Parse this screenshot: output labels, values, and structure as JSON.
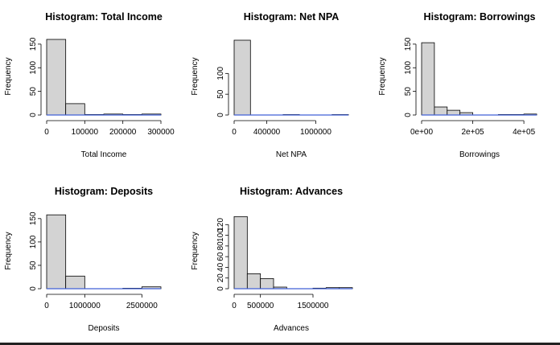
{
  "style": {
    "bar_fill": "#d3d3d3",
    "bar_stroke": "#000000",
    "baseline_color": "#4060d8"
  },
  "chart_data": [
    {
      "type": "bar",
      "title": "Histogram: Total Income",
      "xlabel": "Total Income",
      "ylabel": "Frequency",
      "xlim": [
        0,
        300000
      ],
      "ylim": [
        0,
        160
      ],
      "xticks": [
        0,
        100000,
        200000,
        300000
      ],
      "xtick_labels": [
        "0",
        "100000",
        "200000",
        "300000"
      ],
      "yticks": [
        0,
        50,
        100,
        150
      ],
      "ytick_labels": [
        "0",
        "50",
        "100",
        "150"
      ],
      "bins": [
        {
          "from": 0,
          "to": 50000,
          "count": 160
        },
        {
          "from": 50000,
          "to": 100000,
          "count": 24
        },
        {
          "from": 100000,
          "to": 150000,
          "count": 1
        },
        {
          "from": 150000,
          "to": 200000,
          "count": 2
        },
        {
          "from": 200000,
          "to": 250000,
          "count": 1
        },
        {
          "from": 250000,
          "to": 300000,
          "count": 2
        }
      ]
    },
    {
      "type": "bar",
      "title": "Histogram: Net NPA",
      "xlabel": "Net NPA",
      "ylabel": "Frequency",
      "xlim": [
        0,
        1400000
      ],
      "ylim": [
        0,
        180
      ],
      "xticks": [
        0,
        400000,
        1000000
      ],
      "xtick_labels": [
        "0",
        "400000",
        "1000000"
      ],
      "yticks": [
        0,
        50,
        100
      ],
      "ytick_labels": [
        "0",
        "50",
        "100"
      ],
      "bins": [
        {
          "from": 0,
          "to": 200000,
          "count": 180
        },
        {
          "from": 200000,
          "to": 400000,
          "count": 0
        },
        {
          "from": 400000,
          "to": 600000,
          "count": 0
        },
        {
          "from": 600000,
          "to": 800000,
          "count": 1
        },
        {
          "from": 800000,
          "to": 1000000,
          "count": 0
        },
        {
          "from": 1000000,
          "to": 1200000,
          "count": 0
        },
        {
          "from": 1200000,
          "to": 1400000,
          "count": 1
        }
      ]
    },
    {
      "type": "bar",
      "title": "Histogram: Borrowings",
      "xlabel": "Borrowings",
      "ylabel": "Frequency",
      "xlim": [
        0,
        450000
      ],
      "ylim": [
        0,
        160
      ],
      "xticks": [
        0,
        200000,
        400000
      ],
      "xtick_labels": [
        "0e+00",
        "2e+05",
        "4e+05"
      ],
      "yticks": [
        0,
        50,
        100,
        150
      ],
      "ytick_labels": [
        "0",
        "50",
        "100",
        "150"
      ],
      "bins": [
        {
          "from": 0,
          "to": 50000,
          "count": 153
        },
        {
          "from": 50000,
          "to": 100000,
          "count": 17
        },
        {
          "from": 100000,
          "to": 150000,
          "count": 10
        },
        {
          "from": 150000,
          "to": 200000,
          "count": 5
        },
        {
          "from": 200000,
          "to": 250000,
          "count": 0
        },
        {
          "from": 250000,
          "to": 300000,
          "count": 0
        },
        {
          "from": 300000,
          "to": 350000,
          "count": 1
        },
        {
          "from": 350000,
          "to": 400000,
          "count": 1
        },
        {
          "from": 400000,
          "to": 450000,
          "count": 2
        }
      ]
    },
    {
      "type": "bar",
      "title": "Histogram: Deposits",
      "xlabel": "Deposits",
      "ylabel": "Frequency",
      "xlim": [
        0,
        3000000
      ],
      "ylim": [
        0,
        160
      ],
      "xticks": [
        0,
        1000000,
        2500000
      ],
      "xtick_labels": [
        "0",
        "1000000",
        "2500000"
      ],
      "yticks": [
        0,
        50,
        100,
        150
      ],
      "ytick_labels": [
        "0",
        "50",
        "100",
        "150"
      ],
      "bins": [
        {
          "from": 0,
          "to": 500000,
          "count": 158
        },
        {
          "from": 500000,
          "to": 1000000,
          "count": 27
        },
        {
          "from": 1000000,
          "to": 1500000,
          "count": 0
        },
        {
          "from": 1500000,
          "to": 2000000,
          "count": 0
        },
        {
          "from": 2000000,
          "to": 2500000,
          "count": 1
        },
        {
          "from": 2500000,
          "to": 3000000,
          "count": 4
        }
      ]
    },
    {
      "type": "bar",
      "title": "Histogram: Advances",
      "xlabel": "Advances",
      "ylabel": "Frequency",
      "xlim": [
        0,
        2250000
      ],
      "ylim": [
        0,
        140
      ],
      "xticks": [
        0,
        500000,
        1500000
      ],
      "xtick_labels": [
        "0",
        "500000",
        "1500000"
      ],
      "yticks": [
        0,
        20,
        40,
        60,
        80,
        100,
        120
      ],
      "ytick_labels": [
        "0",
        "20",
        "40",
        "60",
        "80",
        "100",
        "120"
      ],
      "bins": [
        {
          "from": 0,
          "to": 250000,
          "count": 135
        },
        {
          "from": 250000,
          "to": 500000,
          "count": 28
        },
        {
          "from": 500000,
          "to": 750000,
          "count": 19
        },
        {
          "from": 750000,
          "to": 1000000,
          "count": 3
        },
        {
          "from": 1000000,
          "to": 1250000,
          "count": 0
        },
        {
          "from": 1250000,
          "to": 1500000,
          "count": 0
        },
        {
          "from": 1500000,
          "to": 1750000,
          "count": 1
        },
        {
          "from": 1750000,
          "to": 2000000,
          "count": 2
        },
        {
          "from": 2000000,
          "to": 2250000,
          "count": 2
        }
      ]
    }
  ]
}
